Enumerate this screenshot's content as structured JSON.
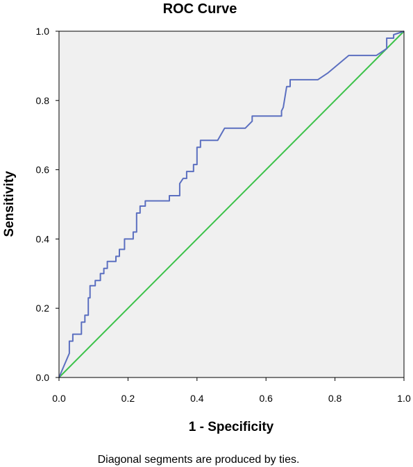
{
  "chart_data": {
    "type": "line",
    "title": "ROC Curve",
    "xlabel": "1 - Specificity",
    "ylabel": "Sensitivity",
    "footnote": "Diagonal segments are produced by ties.",
    "xlim": [
      0,
      1
    ],
    "ylim": [
      0,
      1
    ],
    "x_ticks": [
      "0.0",
      "0.2",
      "0.4",
      "0.6",
      "0.8",
      "1.0"
    ],
    "y_ticks": [
      "0.0",
      "0.2",
      "0.4",
      "0.6",
      "0.8",
      "1.0"
    ],
    "grid": false,
    "background_color": "#f0f0f0",
    "series": [
      {
        "color": "#5b6fc0",
        "x": [
          0.0,
          0.03,
          0.03,
          0.04,
          0.04,
          0.065,
          0.065,
          0.075,
          0.075,
          0.085,
          0.085,
          0.09,
          0.09,
          0.105,
          0.105,
          0.12,
          0.12,
          0.13,
          0.13,
          0.14,
          0.14,
          0.165,
          0.165,
          0.175,
          0.175,
          0.19,
          0.19,
          0.215,
          0.215,
          0.225,
          0.225,
          0.235,
          0.235,
          0.25,
          0.25,
          0.32,
          0.32,
          0.35,
          0.35,
          0.36,
          0.37,
          0.37,
          0.39,
          0.39,
          0.4,
          0.4,
          0.41,
          0.41,
          0.46,
          0.48,
          0.54,
          0.56,
          0.56,
          0.645,
          0.645,
          0.65,
          0.66,
          0.67,
          0.67,
          0.69,
          0.75,
          0.78,
          0.84,
          0.92,
          0.95,
          0.95,
          0.97,
          0.97,
          1.0
        ],
        "y": [
          0.0,
          0.07,
          0.105,
          0.105,
          0.125,
          0.125,
          0.16,
          0.16,
          0.18,
          0.18,
          0.23,
          0.23,
          0.265,
          0.265,
          0.28,
          0.28,
          0.3,
          0.3,
          0.315,
          0.315,
          0.335,
          0.335,
          0.35,
          0.35,
          0.37,
          0.37,
          0.4,
          0.4,
          0.42,
          0.42,
          0.475,
          0.475,
          0.495,
          0.495,
          0.51,
          0.51,
          0.525,
          0.525,
          0.56,
          0.575,
          0.575,
          0.595,
          0.595,
          0.615,
          0.615,
          0.665,
          0.665,
          0.685,
          0.685,
          0.72,
          0.72,
          0.74,
          0.755,
          0.755,
          0.77,
          0.78,
          0.84,
          0.84,
          0.86,
          0.86,
          0.86,
          0.88,
          0.93,
          0.93,
          0.95,
          0.98,
          0.98,
          0.99,
          1.0
        ]
      },
      {
        "color": "#3cc24a",
        "x": [
          0,
          1
        ],
        "y": [
          0,
          1
        ]
      }
    ]
  }
}
